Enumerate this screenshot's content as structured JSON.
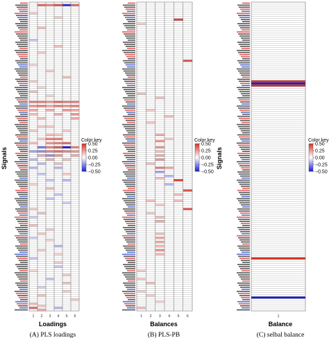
{
  "colors": {
    "negative": "#1a1ad6",
    "neutral": "#ffffff",
    "positive": "#d73027",
    "label_red": "#d62728",
    "label_blue": "#1f3fbf",
    "label_black": "#222222"
  },
  "chart_data": [
    {
      "type": "heatmap",
      "ylabel": "Signals",
      "xlabel": "Loadings",
      "caption": "(A) PLS loadings",
      "columns": [
        "1",
        "2",
        "3",
        "4",
        "5",
        "6"
      ],
      "colorkey": {
        "title": "Color key",
        "ticks": [
          0.5,
          0.25,
          0.0,
          -0.25,
          -0.5
        ],
        "tick_labels": [
          "0.50",
          "0.25",
          "0.00",
          "−0.25",
          "−0.50"
        ],
        "range": [
          -0.5,
          0.5
        ]
      },
      "n_rows": 150,
      "cells": [
        [
          2,
          1,
          0.35
        ],
        [
          3,
          1,
          0.3
        ],
        [
          4,
          1,
          0.4
        ],
        [
          5,
          1,
          -0.45
        ],
        [
          6,
          1,
          0.35
        ],
        [
          1,
          5,
          0.12
        ],
        [
          4,
          7,
          0.12
        ],
        [
          2,
          12,
          0.15
        ],
        [
          1,
          18,
          -0.12
        ],
        [
          4,
          21,
          0.15
        ],
        [
          2,
          24,
          0.12
        ],
        [
          1,
          30,
          0.1
        ],
        [
          3,
          33,
          0.12
        ],
        [
          5,
          36,
          0.15
        ],
        [
          1,
          38,
          0.12
        ],
        [
          2,
          41,
          0.1
        ],
        [
          1,
          43,
          0.15
        ],
        [
          3,
          45,
          0.1
        ],
        [
          1,
          48,
          0.3
        ],
        [
          2,
          48,
          0.3
        ],
        [
          3,
          48,
          0.25
        ],
        [
          4,
          48,
          0.35
        ],
        [
          5,
          48,
          0.3
        ],
        [
          6,
          48,
          0.3
        ],
        [
          1,
          50,
          0.25
        ],
        [
          2,
          50,
          0.3
        ],
        [
          3,
          50,
          0.2
        ],
        [
          4,
          50,
          0.3
        ],
        [
          5,
          50,
          0.25
        ],
        [
          6,
          50,
          0.3
        ],
        [
          1,
          52,
          0.2
        ],
        [
          3,
          52,
          0.2
        ],
        [
          5,
          52,
          0.25
        ],
        [
          6,
          52,
          0.2
        ],
        [
          1,
          54,
          0.15
        ],
        [
          4,
          54,
          0.2
        ],
        [
          6,
          54,
          0.25
        ],
        [
          2,
          56,
          0.15
        ],
        [
          6,
          56,
          0.2
        ],
        [
          2,
          60,
          0.12
        ],
        [
          3,
          60,
          0.12
        ],
        [
          1,
          62,
          0.12
        ],
        [
          5,
          62,
          0.12
        ],
        [
          3,
          64,
          0.15
        ],
        [
          4,
          64,
          0.12
        ],
        [
          2,
          66,
          0.12
        ],
        [
          3,
          66,
          0.3
        ],
        [
          4,
          66,
          0.3
        ],
        [
          1,
          68,
          0.15
        ],
        [
          3,
          68,
          0.25
        ],
        [
          4,
          68,
          0.3
        ],
        [
          5,
          68,
          0.35
        ],
        [
          2,
          70,
          -0.3
        ],
        [
          3,
          70,
          0.3
        ],
        [
          4,
          70,
          0.4
        ],
        [
          5,
          70,
          -0.5
        ],
        [
          6,
          70,
          0.3
        ],
        [
          1,
          72,
          -0.2
        ],
        [
          2,
          72,
          -0.25
        ],
        [
          3,
          72,
          0.3
        ],
        [
          4,
          72,
          0.35
        ],
        [
          5,
          72,
          0.3
        ],
        [
          6,
          72,
          0.25
        ],
        [
          2,
          74,
          0.2
        ],
        [
          3,
          74,
          -0.25
        ],
        [
          4,
          74,
          0.25
        ],
        [
          6,
          74,
          0.2
        ],
        [
          1,
          76,
          -0.15
        ],
        [
          3,
          76,
          0.2
        ],
        [
          5,
          76,
          0.15
        ],
        [
          2,
          78,
          -0.15
        ],
        [
          4,
          78,
          0.15
        ],
        [
          1,
          80,
          -0.15
        ],
        [
          4,
          80,
          -0.15
        ],
        [
          2,
          83,
          -0.12
        ],
        [
          5,
          83,
          0.12
        ],
        [
          3,
          86,
          -0.12
        ],
        [
          5,
          86,
          -0.15
        ],
        [
          1,
          88,
          0.1
        ],
        [
          3,
          90,
          0.15
        ],
        [
          4,
          93,
          -0.12
        ],
        [
          3,
          95,
          -0.12
        ],
        [
          5,
          97,
          -0.1
        ],
        [
          1,
          100,
          0.12
        ],
        [
          2,
          102,
          0.15
        ],
        [
          1,
          104,
          -0.1
        ],
        [
          1,
          108,
          0.15
        ],
        [
          3,
          110,
          0.12
        ],
        [
          2,
          112,
          0.12
        ],
        [
          1,
          114,
          -0.1
        ],
        [
          3,
          115,
          0.1
        ],
        [
          4,
          118,
          -0.15
        ],
        [
          2,
          120,
          0.12
        ],
        [
          4,
          122,
          0.1
        ],
        [
          1,
          124,
          -0.12
        ],
        [
          4,
          126,
          0.12
        ],
        [
          4,
          128,
          -0.12
        ],
        [
          1,
          130,
          0.1
        ],
        [
          5,
          132,
          0.12
        ],
        [
          3,
          134,
          -0.12
        ],
        [
          5,
          136,
          0.15
        ],
        [
          2,
          138,
          -0.1
        ],
        [
          5,
          140,
          0.12
        ],
        [
          2,
          142,
          0.15
        ],
        [
          6,
          144,
          0.12
        ],
        [
          1,
          146,
          0.15
        ],
        [
          2,
          147,
          0.12
        ],
        [
          1,
          148,
          0.35
        ],
        [
          4,
          148,
          -0.15
        ],
        [
          2,
          149,
          0.2
        ]
      ]
    },
    {
      "type": "heatmap",
      "xlabel": "Balances",
      "caption": "(B) PLS-PB",
      "columns": [
        "1",
        "2",
        "3",
        "4",
        "5",
        "6"
      ],
      "colorkey": {
        "title": "Color key",
        "ticks": [
          0.5,
          0.25,
          0.0,
          -0.25,
          -0.5
        ],
        "tick_labels": [
          "0.50",
          "0.25",
          "0.00",
          "−0.25",
          "−0.50"
        ],
        "range": [
          -0.5,
          0.5
        ]
      },
      "n_rows": 150,
      "cells": [
        [
          5,
          8,
          0.45
        ],
        [
          1,
          10,
          0.12
        ],
        [
          6,
          28,
          0.4
        ],
        [
          1,
          44,
          0.15
        ],
        [
          3,
          46,
          0.15
        ],
        [
          2,
          52,
          0.12
        ],
        [
          4,
          55,
          0.15
        ],
        [
          2,
          58,
          0.12
        ],
        [
          3,
          64,
          0.2
        ],
        [
          4,
          66,
          0.12
        ],
        [
          3,
          67,
          0.25
        ],
        [
          3,
          70,
          0.25
        ],
        [
          3,
          72,
          0.15
        ],
        [
          3,
          74,
          0.2
        ],
        [
          3,
          76,
          0.25
        ],
        [
          2,
          78,
          0.15
        ],
        [
          3,
          80,
          0.3
        ],
        [
          4,
          80,
          0.2
        ],
        [
          3,
          82,
          -0.2
        ],
        [
          4,
          84,
          -0.15
        ],
        [
          3,
          85,
          0.15
        ],
        [
          5,
          86,
          0.45
        ],
        [
          4,
          88,
          -0.15
        ],
        [
          6,
          91,
          0.4
        ],
        [
          5,
          93,
          0.15
        ],
        [
          2,
          96,
          0.15
        ],
        [
          5,
          96,
          0.15
        ],
        [
          3,
          98,
          0.12
        ],
        [
          6,
          100,
          0.4
        ],
        [
          2,
          102,
          0.12
        ],
        [
          3,
          104,
          0.15
        ],
        [
          3,
          106,
          0.2
        ],
        [
          3,
          112,
          0.15
        ],
        [
          3,
          114,
          0.2
        ],
        [
          3,
          116,
          0.2
        ],
        [
          3,
          118,
          0.15
        ],
        [
          3,
          120,
          0.25
        ],
        [
          3,
          122,
          0.15
        ],
        [
          1,
          130,
          0.12
        ],
        [
          1,
          134,
          0.12
        ],
        [
          2,
          136,
          0.15
        ],
        [
          1,
          140,
          0.12
        ],
        [
          2,
          142,
          0.12
        ],
        [
          3,
          145,
          0.1
        ],
        [
          1,
          148,
          0.15
        ]
      ]
    },
    {
      "type": "heatmap",
      "xlabel": "Balance",
      "caption": "(C) selbal balance",
      "columns": [
        "1"
      ],
      "colorkey": {
        "title": "Color key",
        "ticks": [
          0.5,
          0.25,
          0.0,
          -0.25,
          -0.5
        ],
        "tick_labels": [
          "0.50",
          "0.25",
          "0.00",
          "−0.25",
          "−0.50"
        ],
        "range": [
          -0.5,
          0.5
        ]
      },
      "n_rows": 150,
      "cells": [
        [
          1,
          38,
          0.5
        ],
        [
          1,
          39,
          -0.5
        ],
        [
          1,
          40,
          0.5
        ],
        [
          1,
          124,
          0.5
        ],
        [
          1,
          143,
          -0.5
        ]
      ]
    }
  ]
}
